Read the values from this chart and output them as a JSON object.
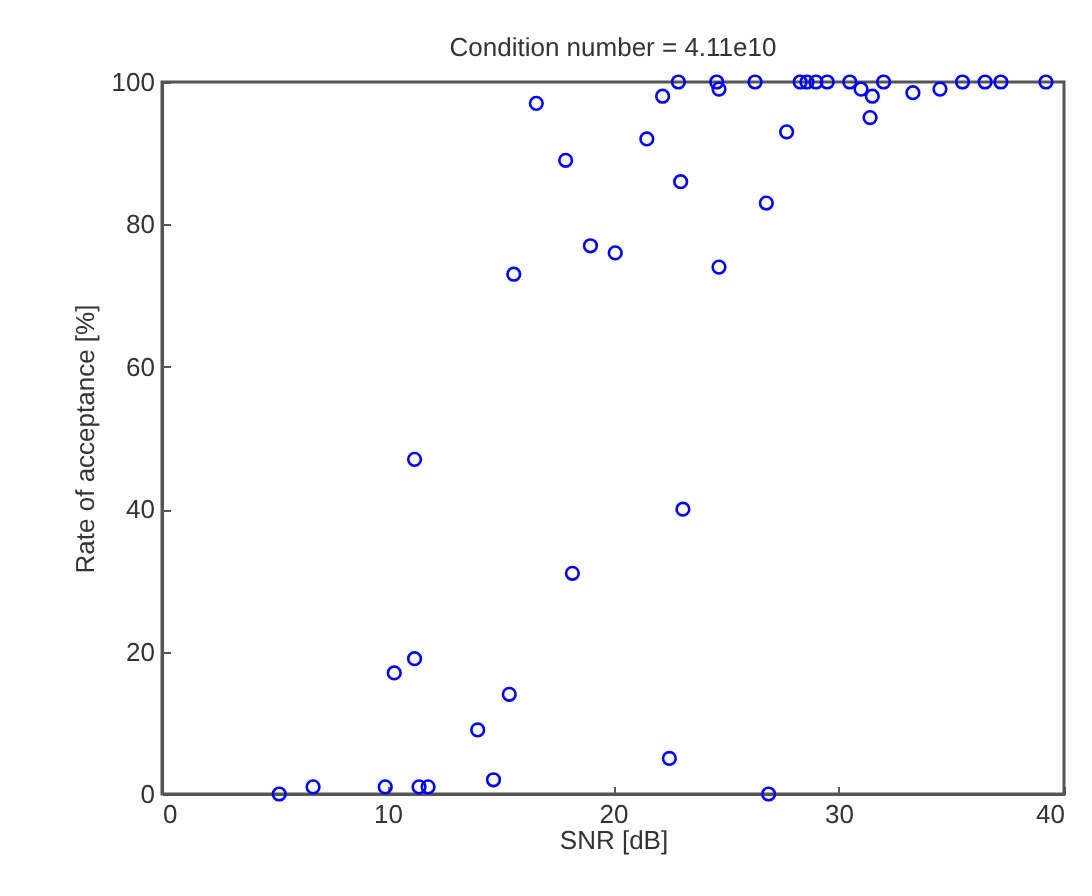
{
  "chart_data": {
    "type": "scatter",
    "title": "Condition  number = 4.11e10",
    "xlabel": "SNR [dB]",
    "ylabel": "Rate of acceptance [%]",
    "xlim": [
      0,
      40
    ],
    "ylim": [
      0,
      100
    ],
    "xticks": [
      0,
      10,
      20,
      30,
      40
    ],
    "yticks": [
      0,
      20,
      40,
      60,
      80,
      100
    ],
    "grid": false,
    "marker": "circle",
    "series": [
      {
        "color": "#0000ff",
        "x": [
          5.2,
          6.7,
          9.9,
          11.4,
          11.8,
          10.3,
          11.2,
          11.2,
          14.0,
          14.7,
          15.4,
          18.2,
          15.6,
          16.6,
          17.9,
          19.0,
          20.1,
          21.5,
          22.2,
          22.5,
          22.9,
          23.0,
          23.1,
          24.6,
          24.7,
          24.7,
          26.3,
          26.8,
          26.9,
          27.7,
          28.3,
          28.6,
          29.0,
          29.5,
          30.5,
          31.0,
          31.4,
          31.5,
          32.0,
          33.3,
          34.5,
          35.5,
          36.5,
          37.2,
          39.2
        ],
        "values": [
          0,
          1,
          1,
          1,
          1,
          17,
          19,
          47,
          9,
          2,
          14,
          31,
          73,
          97,
          89,
          77,
          76,
          92,
          98,
          5,
          100,
          86,
          40,
          100,
          74,
          99,
          100,
          83,
          0,
          93,
          100,
          100,
          100,
          100,
          100,
          99,
          95,
          98,
          100,
          98.5,
          99,
          100,
          100,
          100,
          100
        ]
      }
    ]
  }
}
